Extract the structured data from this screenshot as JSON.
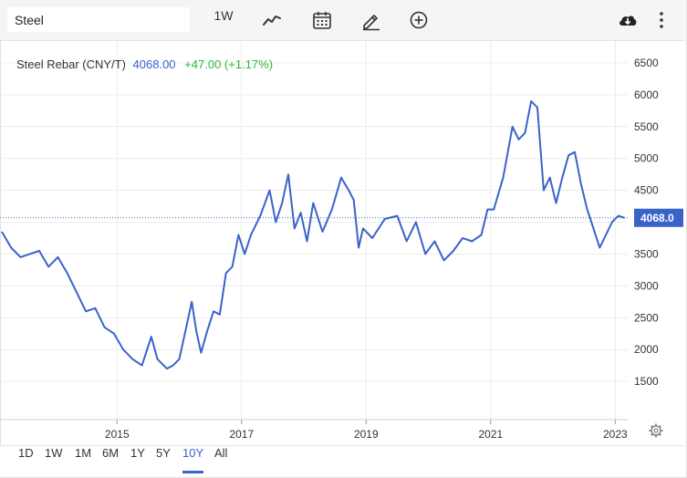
{
  "toolbar": {
    "search_value": "Steel",
    "interval_label": "1W",
    "icons": [
      "chart-line-icon",
      "calendar-icon",
      "pencil-icon",
      "plus-circle-icon",
      "cloud-download-icon",
      "more-vertical-icon"
    ]
  },
  "legend": {
    "name": "Steel Rebar (CNY/T)",
    "price": "4068.00",
    "change": "+47.00 (+1.17%)"
  },
  "colors": {
    "line": "#3a63c9",
    "price_text": "#3a63c9",
    "change_text": "#2db93a",
    "grid": "#ececec"
  },
  "price_label": "4068.0",
  "ranges": [
    {
      "label": "1D",
      "active": false
    },
    {
      "label": "1W",
      "active": false
    },
    {
      "label": "1M",
      "active": false
    },
    {
      "label": "6M",
      "active": false
    },
    {
      "label": "1Y",
      "active": false
    },
    {
      "label": "5Y",
      "active": false
    },
    {
      "label": "10Y",
      "active": true
    },
    {
      "label": "All",
      "active": false
    }
  ],
  "chart_data": {
    "type": "line",
    "x_tick_labels": [
      "2015",
      "2017",
      "2019",
      "2021",
      "2023"
    ],
    "x_ticks": [
      2015,
      2017,
      2019,
      2021,
      2023
    ],
    "y_tick_labels": [
      "1500",
      "2000",
      "2500",
      "3000",
      "3500",
      "4000",
      "4500",
      "5000",
      "5500",
      "6000",
      "6500"
    ],
    "y_ticks": [
      1500,
      2000,
      2500,
      3000,
      3500,
      4000,
      4500,
      5000,
      5500,
      6000,
      6500
    ],
    "xlim": [
      2013.15,
      2023.2
    ],
    "ylim": [
      900,
      6700
    ],
    "grid": true,
    "last_value": 4068.0,
    "series": [
      {
        "x": [
          2013.15,
          2013.3,
          2013.45,
          2013.6,
          2013.75,
          2013.9,
          2014.05,
          2014.2,
          2014.35,
          2014.5,
          2014.65,
          2014.8,
          2014.95,
          2015.1,
          2015.25,
          2015.4,
          2015.55,
          2015.65,
          2015.8,
          2015.9,
          2016.0,
          2016.1,
          2016.2,
          2016.27,
          2016.35,
          2016.45,
          2016.55,
          2016.65,
          2016.75,
          2016.85,
          2016.95,
          2017.05,
          2017.15,
          2017.3,
          2017.45,
          2017.55,
          2017.65,
          2017.75,
          2017.85,
          2017.95,
          2018.05,
          2018.15,
          2018.3,
          2018.45,
          2018.6,
          2018.72,
          2018.8,
          2018.88,
          2018.95,
          2019.1,
          2019.3,
          2019.5,
          2019.65,
          2019.8,
          2019.95,
          2020.1,
          2020.25,
          2020.4,
          2020.55,
          2020.7,
          2020.85,
          2020.95,
          2021.05,
          2021.2,
          2021.35,
          2021.45,
          2021.55,
          2021.65,
          2021.75,
          2021.85,
          2021.95,
          2022.05,
          2022.15,
          2022.25,
          2022.35,
          2022.45,
          2022.55,
          2022.65,
          2022.75,
          2022.85,
          2022.95,
          2023.05,
          2023.15
        ],
        "y": [
          3850,
          3600,
          3450,
          3500,
          3550,
          3300,
          3450,
          3200,
          2900,
          2600,
          2650,
          2350,
          2250,
          2000,
          1850,
          1750,
          2200,
          1850,
          1700,
          1750,
          1850,
          2300,
          2750,
          2300,
          1950,
          2300,
          2600,
          2550,
          3200,
          3300,
          3800,
          3500,
          3800,
          4100,
          4500,
          4000,
          4300,
          4750,
          3900,
          4150,
          3700,
          4300,
          3850,
          4200,
          4700,
          4500,
          4350,
          3600,
          3900,
          3750,
          4050,
          4100,
          3700,
          4000,
          3500,
          3700,
          3400,
          3550,
          3750,
          3700,
          3800,
          4200,
          4200,
          4700,
          5500,
          5300,
          5400,
          5900,
          5800,
          4500,
          4700,
          4300,
          4700,
          5050,
          5100,
          4600,
          4200,
          3900,
          3600,
          3800,
          4000,
          4100,
          4068
        ]
      }
    ]
  }
}
